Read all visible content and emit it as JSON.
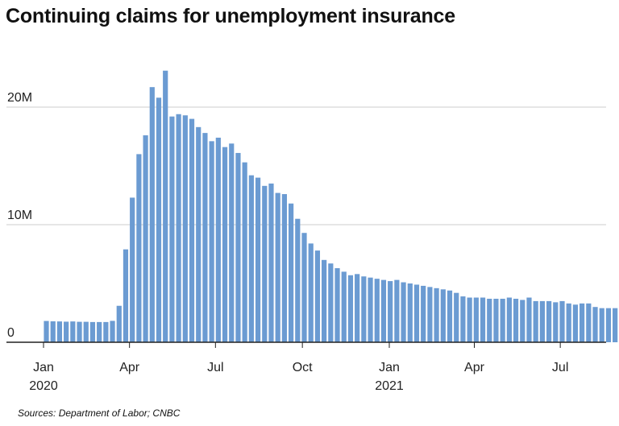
{
  "title": "Continuing claims for unemployment insurance",
  "source": "Sources: Department of Labor; CNBC",
  "colors": {
    "bar": "#6b9bd2",
    "grid": "#cccccc",
    "axis": "#222222"
  },
  "chart_data": {
    "type": "bar",
    "title": "Continuing claims for unemployment insurance",
    "xlabel": "",
    "ylabel": "",
    "ylim": [
      0,
      24000000
    ],
    "grid": true,
    "y_ticks": [
      {
        "value": 0,
        "label": "0"
      },
      {
        "value": 10000000,
        "label": "10M"
      },
      {
        "value": 20000000,
        "label": "20M"
      }
    ],
    "x_ticks": [
      {
        "date": "2020-01-01",
        "label": "Jan",
        "sublabel": "2020"
      },
      {
        "date": "2020-04-01",
        "label": "Apr",
        "sublabel": ""
      },
      {
        "date": "2020-07-01",
        "label": "Jul",
        "sublabel": ""
      },
      {
        "date": "2020-10-01",
        "label": "Oct",
        "sublabel": ""
      },
      {
        "date": "2021-01-01",
        "label": "Jan",
        "sublabel": "2021"
      },
      {
        "date": "2021-04-01",
        "label": "Apr",
        "sublabel": ""
      },
      {
        "date": "2021-07-01",
        "label": "Jul",
        "sublabel": ""
      }
    ],
    "x_start": "2020-01-04",
    "x_interval_days": 7,
    "values": [
      1810000,
      1780000,
      1770000,
      1750000,
      1770000,
      1740000,
      1740000,
      1720000,
      1720000,
      1720000,
      1820000,
      3100000,
      7900000,
      12300000,
      16000000,
      17600000,
      21700000,
      20800000,
      23100000,
      19200000,
      19400000,
      19300000,
      19000000,
      18300000,
      17800000,
      17100000,
      17400000,
      16600000,
      16900000,
      16100000,
      15300000,
      14200000,
      14000000,
      13300000,
      13500000,
      12700000,
      12600000,
      11800000,
      10500000,
      9300000,
      8400000,
      7800000,
      7000000,
      6700000,
      6300000,
      6000000,
      5700000,
      5800000,
      5600000,
      5500000,
      5400000,
      5300000,
      5200000,
      5300000,
      5100000,
      5000000,
      4900000,
      4800000,
      4700000,
      4600000,
      4500000,
      4400000,
      4200000,
      3900000,
      3800000,
      3800000,
      3800000,
      3700000,
      3700000,
      3700000,
      3800000,
      3700000,
      3600000,
      3800000,
      3500000,
      3500000,
      3500000,
      3400000,
      3500000,
      3300000,
      3200000,
      3300000,
      3300000,
      3000000,
      2900000,
      2900000,
      2900000
    ]
  }
}
